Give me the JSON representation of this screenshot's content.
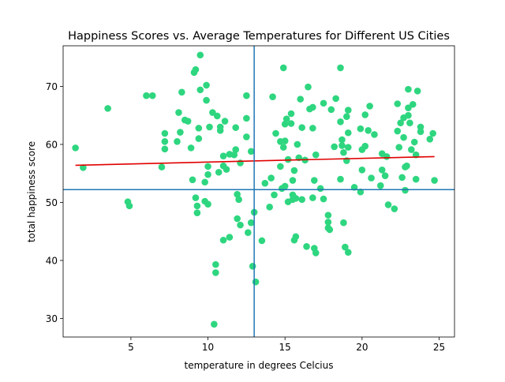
{
  "chart_data": {
    "type": "scatter",
    "title": "Happiness Scores vs. Average Temperatures for Different US Cities",
    "xlabel": "temperature in degrees Celcius",
    "ylabel": "total happiness score",
    "xlim": [
      0.6,
      26.0
    ],
    "ylim": [
      26.8,
      77.0
    ],
    "xticks": [
      5,
      10,
      15,
      20,
      25
    ],
    "yticks": [
      30,
      40,
      50,
      60,
      70
    ],
    "grid": false,
    "legend": "none",
    "marker_color": "#2ed67f",
    "points": [
      [
        1.4,
        59.4
      ],
      [
        1.9,
        56.0
      ],
      [
        3.5,
        66.2
      ],
      [
        4.8,
        50.1
      ],
      [
        4.9,
        49.4
      ],
      [
        6.0,
        68.4
      ],
      [
        6.4,
        68.4
      ],
      [
        7.0,
        56.1
      ],
      [
        7.2,
        61.9
      ],
      [
        7.2,
        60.5
      ],
      [
        7.2,
        59.2
      ],
      [
        8.0,
        60.5
      ],
      [
        8.1,
        65.5
      ],
      [
        8.2,
        62.1
      ],
      [
        8.3,
        69.0
      ],
      [
        8.5,
        64.2
      ],
      [
        8.7,
        64.0
      ],
      [
        8.9,
        59.4
      ],
      [
        9.0,
        53.9
      ],
      [
        9.1,
        72.4
      ],
      [
        9.2,
        72.9
      ],
      [
        9.2,
        50.8
      ],
      [
        9.3,
        49.4
      ],
      [
        9.3,
        48.2
      ],
      [
        9.4,
        62.8
      ],
      [
        9.4,
        61.0
      ],
      [
        9.5,
        75.4
      ],
      [
        9.5,
        69.4
      ],
      [
        9.8,
        50.2
      ],
      [
        9.8,
        53.5
      ],
      [
        9.9,
        70.2
      ],
      [
        9.9,
        67.6
      ],
      [
        10.0,
        56.2
      ],
      [
        10.0,
        54.8
      ],
      [
        10.0,
        49.7
      ],
      [
        10.1,
        63.0
      ],
      [
        10.3,
        65.5
      ],
      [
        10.4,
        29.0
      ],
      [
        10.5,
        39.3
      ],
      [
        10.5,
        37.9
      ],
      [
        10.6,
        64.9
      ],
      [
        10.7,
        55.2
      ],
      [
        10.8,
        62.4
      ],
      [
        10.8,
        63.0
      ],
      [
        11.0,
        58.0
      ],
      [
        11.0,
        56.3
      ],
      [
        11.0,
        43.5
      ],
      [
        11.1,
        64.0
      ],
      [
        11.2,
        55.7
      ],
      [
        11.4,
        58.3
      ],
      [
        11.4,
        44.0
      ],
      [
        11.7,
        58.2
      ],
      [
        11.8,
        59.1
      ],
      [
        11.8,
        62.9
      ],
      [
        11.9,
        51.4
      ],
      [
        11.9,
        47.2
      ],
      [
        12.0,
        50.5
      ],
      [
        12.1,
        56.8
      ],
      [
        12.1,
        46.1
      ],
      [
        12.5,
        64.5
      ],
      [
        12.5,
        68.4
      ],
      [
        12.5,
        61.3
      ],
      [
        12.6,
        44.8
      ],
      [
        12.8,
        58.8
      ],
      [
        12.8,
        46.5
      ],
      [
        12.9,
        39.0
      ],
      [
        13.0,
        48.3
      ],
      [
        13.1,
        36.3
      ],
      [
        13.5,
        43.4
      ],
      [
        13.7,
        53.3
      ],
      [
        14.0,
        49.2
      ],
      [
        14.1,
        54.2
      ],
      [
        14.2,
        68.2
      ],
      [
        14.3,
        51.3
      ],
      [
        14.4,
        61.9
      ],
      [
        14.7,
        56.2
      ],
      [
        14.7,
        60.5
      ],
      [
        14.8,
        52.4
      ],
      [
        14.9,
        73.2
      ],
      [
        14.9,
        59.5
      ],
      [
        15.0,
        63.5
      ],
      [
        15.0,
        60.6
      ],
      [
        15.0,
        52.8
      ],
      [
        15.1,
        64.4
      ],
      [
        15.2,
        50.1
      ],
      [
        15.2,
        57.4
      ],
      [
        15.4,
        63.6
      ],
      [
        15.4,
        65.3
      ],
      [
        15.5,
        51.3
      ],
      [
        15.5,
        53.8
      ],
      [
        15.5,
        50.5
      ],
      [
        15.6,
        55.5
      ],
      [
        15.6,
        43.5
      ],
      [
        15.7,
        50.7
      ],
      [
        15.7,
        44.1
      ],
      [
        15.8,
        60.0
      ],
      [
        15.9,
        57.7
      ],
      [
        16.0,
        67.8
      ],
      [
        16.1,
        62.9
      ],
      [
        16.1,
        50.5
      ],
      [
        16.3,
        57.3
      ],
      [
        16.4,
        42.4
      ],
      [
        16.5,
        69.9
      ],
      [
        16.6,
        66.1
      ],
      [
        16.8,
        66.4
      ],
      [
        16.8,
        62.8
      ],
      [
        16.8,
        50.8
      ],
      [
        16.9,
        42.1
      ],
      [
        16.9,
        53.8
      ],
      [
        17.0,
        58.2
      ],
      [
        17.0,
        41.3
      ],
      [
        17.3,
        52.4
      ],
      [
        17.5,
        50.6
      ],
      [
        17.5,
        67.1
      ],
      [
        17.8,
        47.8
      ],
      [
        17.8,
        46.6
      ],
      [
        17.8,
        45.6
      ],
      [
        17.9,
        45.3
      ],
      [
        18.0,
        66.0
      ],
      [
        18.2,
        59.6
      ],
      [
        18.3,
        67.9
      ],
      [
        18.6,
        73.2
      ],
      [
        18.6,
        54.0
      ],
      [
        18.6,
        63.9
      ],
      [
        18.7,
        60.8
      ],
      [
        18.7,
        59.8
      ],
      [
        18.8,
        46.5
      ],
      [
        18.8,
        58.6
      ],
      [
        18.9,
        42.3
      ],
      [
        19.0,
        64.8
      ],
      [
        19.0,
        57.2
      ],
      [
        19.1,
        62.0
      ],
      [
        19.1,
        65.9
      ],
      [
        19.1,
        59.5
      ],
      [
        19.1,
        41.4
      ],
      [
        19.5,
        52.6
      ],
      [
        19.9,
        62.7
      ],
      [
        19.9,
        51.8
      ],
      [
        20.0,
        55.6
      ],
      [
        20.0,
        59.1
      ],
      [
        20.2,
        65.1
      ],
      [
        20.2,
        59.7
      ],
      [
        20.4,
        62.4
      ],
      [
        20.5,
        66.6
      ],
      [
        20.6,
        54.2
      ],
      [
        20.8,
        61.7
      ],
      [
        21.2,
        52.9
      ],
      [
        21.3,
        55.6
      ],
      [
        21.3,
        58.4
      ],
      [
        21.5,
        54.6
      ],
      [
        21.6,
        57.9
      ],
      [
        21.7,
        49.6
      ],
      [
        22.1,
        48.9
      ],
      [
        22.3,
        67.0
      ],
      [
        22.3,
        62.3
      ],
      [
        22.4,
        59.5
      ],
      [
        22.5,
        63.7
      ],
      [
        22.6,
        54.3
      ],
      [
        22.7,
        64.6
      ],
      [
        22.7,
        61.2
      ],
      [
        22.8,
        56.1
      ],
      [
        22.8,
        52.1
      ],
      [
        22.9,
        56.3
      ],
      [
        23.0,
        65.0
      ],
      [
        23.0,
        66.3
      ],
      [
        23.0,
        69.5
      ],
      [
        23.1,
        63.7
      ],
      [
        23.2,
        59.1
      ],
      [
        23.3,
        66.9
      ],
      [
        23.4,
        60.4
      ],
      [
        23.5,
        58.2
      ],
      [
        23.5,
        54.0
      ],
      [
        23.6,
        69.2
      ],
      [
        23.8,
        63.0
      ],
      [
        23.8,
        62.2
      ],
      [
        24.4,
        60.9
      ],
      [
        24.6,
        61.9
      ],
      [
        24.7,
        53.8
      ]
    ],
    "regression_line": {
      "x": [
        1.4,
        24.7
      ],
      "y": [
        56.4,
        57.9
      ],
      "color": "#e00000"
    },
    "reference_lines": {
      "vertical_x": 13.0,
      "horizontal_y": 52.2,
      "color": "#1f77b4"
    }
  }
}
